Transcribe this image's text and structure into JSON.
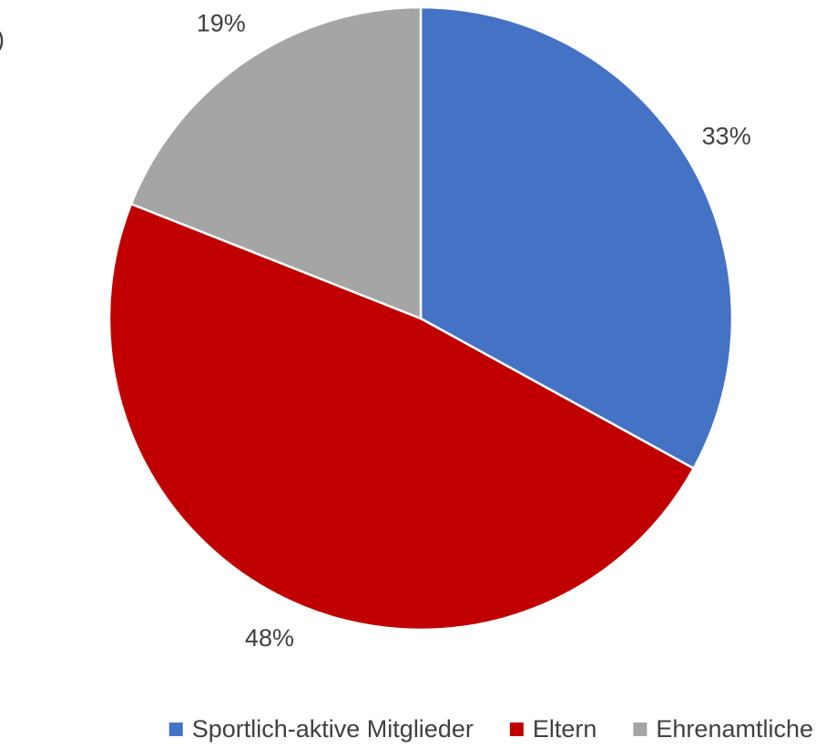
{
  "chart_data": {
    "type": "pie",
    "annotation": ")",
    "categories": [
      "Sportlich-aktive Mitglieder",
      "Eltern",
      "Ehrenamtliche"
    ],
    "values": [
      33,
      48,
      19
    ],
    "value_labels": [
      "33%",
      "48%",
      "19%"
    ],
    "colors": [
      "#4472c4",
      "#c00000",
      "#a5a5a5"
    ],
    "legend": "bottom"
  }
}
